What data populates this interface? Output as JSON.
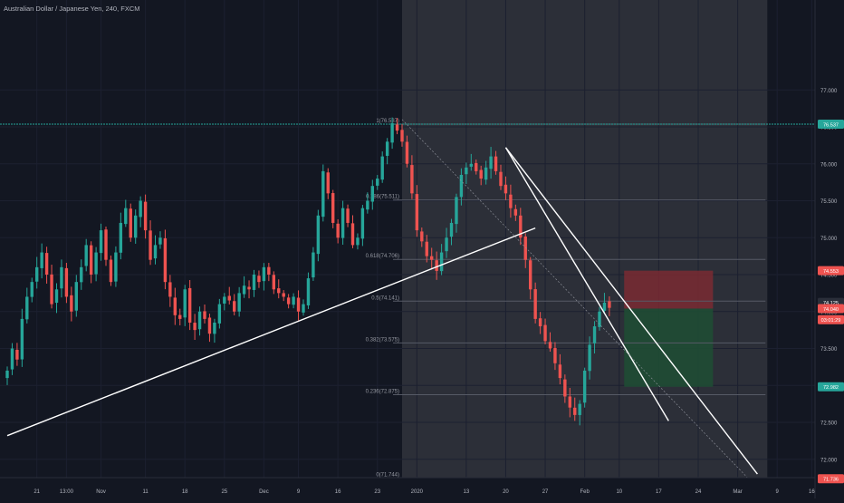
{
  "header": {
    "title": "Australian Dollar / Japanese Yen, 240, FXCM"
  },
  "colors": {
    "background": "#131722",
    "highlight_zone": "#2c2f38",
    "bull": "#26a69a",
    "bear": "#ef5350",
    "fib_line": "#565a66",
    "trend_line": "#ffffff",
    "resistance": "#26a69a",
    "support": "#e53935",
    "stop_zone": "#7a2a33",
    "target_zone": "#1f4d34",
    "axis_text": "#b2b5be",
    "price_tag_red": "#ef5350",
    "price_tag_teal": "#26a69a",
    "price_tag_gray": "#2a2e39"
  },
  "chart_data": {
    "type": "candlestick",
    "ylim": [
      71.5,
      77.1
    ],
    "y_ticks": [
      72.0,
      72.5,
      73.0,
      73.5,
      74.0,
      74.5,
      75.0,
      75.5,
      76.0,
      76.5,
      77.0
    ],
    "y_tick_labels": [
      "72.000",
      "72.500",
      "73.000",
      "73.500",
      "74.000",
      "74.500",
      "75.000",
      "75.500",
      "76.000",
      "76.500",
      "77.000"
    ],
    "x_ticks": [
      {
        "i": 6,
        "label": "21"
      },
      {
        "i": 12,
        "label": "13:00"
      },
      {
        "i": 19,
        "label": "Nov"
      },
      {
        "i": 28,
        "label": "11"
      },
      {
        "i": 36,
        "label": "18"
      },
      {
        "i": 44,
        "label": "25"
      },
      {
        "i": 52,
        "label": "Dec"
      },
      {
        "i": 59,
        "label": "9"
      },
      {
        "i": 67,
        "label": "16"
      },
      {
        "i": 75,
        "label": "23"
      },
      {
        "i": 83,
        "label": "2020"
      },
      {
        "i": 93,
        "label": "13"
      },
      {
        "i": 101,
        "label": "20"
      },
      {
        "i": 109,
        "label": "27"
      },
      {
        "i": 117,
        "label": "Feb"
      },
      {
        "i": 124,
        "label": "10"
      },
      {
        "i": 132,
        "label": "17"
      },
      {
        "i": 140,
        "label": "24"
      },
      {
        "i": 148,
        "label": "Mar"
      },
      {
        "i": 156,
        "label": "9"
      },
      {
        "i": 163,
        "label": "16"
      }
    ],
    "closes": [
      73.2,
      73.5,
      73.35,
      73.9,
      74.2,
      74.4,
      74.6,
      74.8,
      74.5,
      74.1,
      74.3,
      74.6,
      74.2,
      74.0,
      74.4,
      74.6,
      74.9,
      74.5,
      74.8,
      75.1,
      74.7,
      74.4,
      74.8,
      75.2,
      75.4,
      75.0,
      75.3,
      75.5,
      75.1,
      74.7,
      74.9,
      75.0,
      74.4,
      74.2,
      73.95,
      73.9,
      74.3,
      73.85,
      73.75,
      74.0,
      73.9,
      73.7,
      73.85,
      74.1,
      74.2,
      74.15,
      74.0,
      74.25,
      74.35,
      74.3,
      74.5,
      74.4,
      74.6,
      74.5,
      74.3,
      74.25,
      74.2,
      74.1,
      74.2,
      74.0,
      74.1,
      74.45,
      74.8,
      75.3,
      75.9,
      75.6,
      75.2,
      75.0,
      75.4,
      75.2,
      74.9,
      75.0,
      75.4,
      75.5,
      75.7,
      75.8,
      76.1,
      76.3,
      76.55,
      76.45,
      76.3,
      76.0,
      75.6,
      75.1,
      74.95,
      74.75,
      74.7,
      74.55,
      74.8,
      75.0,
      75.2,
      75.55,
      75.85,
      75.95,
      76.0,
      75.9,
      75.8,
      75.95,
      76.1,
      75.9,
      75.7,
      75.6,
      75.4,
      75.3,
      75.0,
      74.7,
      74.3,
      73.9,
      73.8,
      73.6,
      73.5,
      73.3,
      73.1,
      72.85,
      72.7,
      72.6,
      72.75,
      73.2,
      73.55,
      73.8,
      74.0,
      74.12,
      74.05
    ],
    "trend_lines": [
      {
        "p1": {
          "i": 0,
          "v": 72.32
        },
        "p2": {
          "i": 107,
          "v": 75.13
        }
      },
      {
        "p1": {
          "i": 101,
          "v": 76.22
        },
        "p2": {
          "i": 152,
          "v": 71.8
        }
      },
      {
        "p1": {
          "i": 101,
          "v": 76.22
        },
        "p2": {
          "i": 134,
          "v": 72.52
        }
      },
      {
        "p1": {
          "i": 80,
          "v": 76.6
        },
        "p2": {
          "i": 150,
          "v": 71.75
        }
      }
    ],
    "horizontal_levels": [
      {
        "value": 76.537,
        "label": "76.537",
        "role": "resistance"
      },
      {
        "value": 71.736,
        "label": "71.736",
        "role": "support"
      }
    ],
    "fib_range": {
      "start_i": 80,
      "end_i": 154
    },
    "fib_levels": [
      {
        "value": 76.537,
        "label": "1(76.537)"
      },
      {
        "value": 75.511,
        "label": "0.786(75.511)"
      },
      {
        "value": 74.706,
        "label": "0.618(74.706)"
      },
      {
        "value": 74.141,
        "label": "0.5(74.141)"
      },
      {
        "value": 73.575,
        "label": "0.382(73.575)"
      },
      {
        "value": 72.875,
        "label": "0.236(72.875)"
      },
      {
        "value": 71.744,
        "label": "0(71.744)"
      }
    ],
    "highlight_zone": {
      "start_i": 80,
      "end_i": 154
    },
    "position_tool": {
      "start_i": 125,
      "end_i": 143,
      "entry": 74.04,
      "stop": 74.553,
      "target": 72.982
    },
    "price_tags": [
      {
        "value": 76.537,
        "label": "76.537",
        "style": "teal"
      },
      {
        "value": 74.553,
        "label": "74.553",
        "style": "red"
      },
      {
        "value": 74.125,
        "label": "74.125",
        "style": "gray"
      },
      {
        "value": 74.04,
        "label": "74.040",
        "style": "red"
      },
      {
        "value": 73.89,
        "label": "03:01:29",
        "style": "red"
      },
      {
        "value": 72.982,
        "label": "72.982",
        "style": "teal"
      },
      {
        "value": 71.736,
        "label": "71.736",
        "style": "red"
      }
    ],
    "events_marker": {
      "i": 127
    }
  }
}
